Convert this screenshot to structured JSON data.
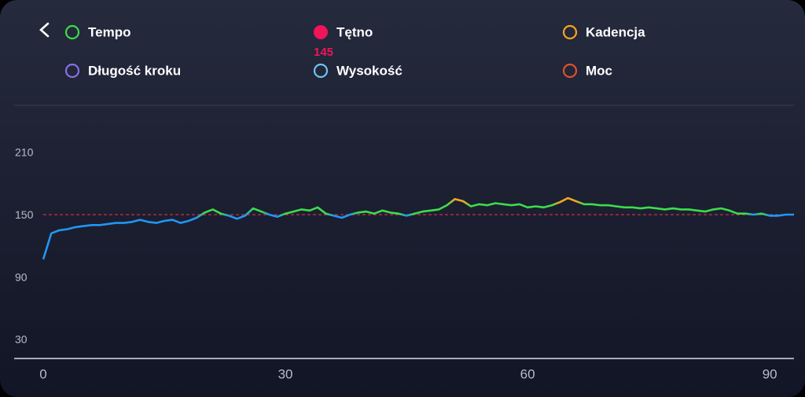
{
  "chart_data": {
    "type": "line",
    "metrics": [
      {
        "name": "Tempo",
        "color": "#3ddc4a"
      },
      {
        "name": "Tętno",
        "color": "#f0145a",
        "selected": true,
        "value": 145
      },
      {
        "name": "Kadencja",
        "color": "#f5a623"
      },
      {
        "name": "Długość kroku",
        "color": "#8a6fe8"
      },
      {
        "name": "Wysokość",
        "color": "#6ec3f0"
      },
      {
        "name": "Moc",
        "color": "#e0502a"
      }
    ],
    "x": [
      0,
      1,
      2,
      3,
      4,
      5,
      6,
      7,
      8,
      9,
      10,
      11,
      12,
      13,
      14,
      15,
      16,
      17,
      18,
      19,
      20,
      21,
      22,
      23,
      24,
      25,
      26,
      27,
      28,
      29,
      30,
      31,
      32,
      33,
      34,
      35,
      36,
      37,
      38,
      39,
      40,
      41,
      42,
      43,
      44,
      45,
      46,
      47,
      48,
      49,
      50,
      51,
      52,
      53,
      54,
      55,
      56,
      57,
      58,
      59,
      60,
      61,
      62,
      63,
      64,
      65,
      66,
      67,
      68,
      69,
      70,
      71,
      72,
      73,
      74,
      75,
      76,
      77,
      78,
      79,
      80,
      81,
      82,
      83,
      84,
      85,
      86,
      87,
      88,
      89,
      90,
      91,
      92,
      93
    ],
    "values": [
      108,
      133,
      136,
      137,
      139,
      140,
      141,
      141,
      142,
      143,
      143,
      144,
      146,
      144,
      143,
      145,
      146,
      143,
      145,
      148,
      153,
      156,
      152,
      150,
      147,
      150,
      157,
      154,
      151,
      149,
      152,
      154,
      156,
      155,
      158,
      152,
      150,
      148,
      151,
      153,
      154,
      152,
      155,
      153,
      152,
      150,
      152,
      154,
      155,
      156,
      160,
      166,
      164,
      159,
      161,
      160,
      162,
      161,
      160,
      161,
      158,
      159,
      158,
      160,
      163,
      167,
      164,
      161,
      161,
      160,
      160,
      159,
      158,
      158,
      157,
      158,
      157,
      156,
      157,
      156,
      156,
      155,
      154,
      156,
      157,
      155,
      152,
      152,
      151,
      152,
      150,
      150,
      151,
      151
    ],
    "color_zones": [
      {
        "from": 0,
        "color": "#2196f3"
      },
      {
        "from": 152,
        "color": "#3ddc4a"
      },
      {
        "from": 163,
        "color": "#f5a623"
      }
    ],
    "reference_line": {
      "value": 151,
      "color": "#e03048"
    },
    "xlim": [
      0,
      93
    ],
    "ylim": [
      13,
      250
    ],
    "xticks": [
      0,
      30,
      60,
      90
    ],
    "yticks": [
      30,
      90,
      150,
      210
    ]
  }
}
